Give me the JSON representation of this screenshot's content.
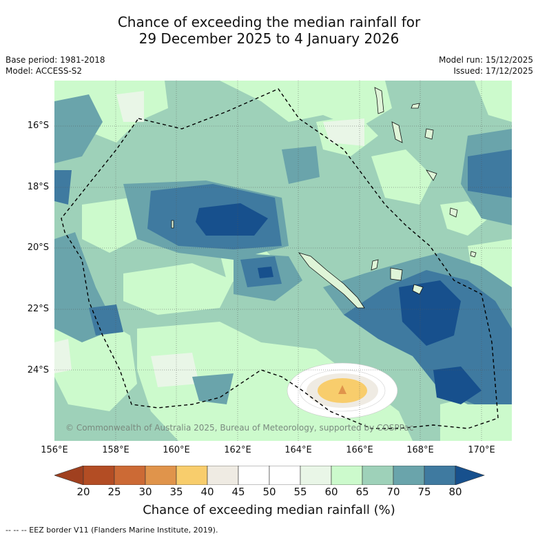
{
  "title": {
    "line1": "Chance of exceeding the median rainfall for",
    "line2": "29 December 2025 to 4 January 2026"
  },
  "meta": {
    "base_period": "Base period: 1981-2018",
    "model": "Model: ACCESS-S2",
    "model_run": "Model run: 15/12/2025",
    "issued": "Issued: 17/12/2025"
  },
  "axes": {
    "lat_labels": [
      "16°S",
      "18°S",
      "20°S",
      "22°S",
      "24°S"
    ],
    "lon_labels": [
      "156°E",
      "158°E",
      "160°E",
      "162°E",
      "164°E",
      "166°E",
      "168°E",
      "170°E"
    ]
  },
  "copyright": "© Commonwealth of Australia 2025, Bureau of Meteorology, supported by COSPPac",
  "colorbar": {
    "title": "Chance of exceeding median rainfall (%)",
    "ticks": [
      "20",
      "25",
      "30",
      "35",
      "40",
      "45",
      "50",
      "55",
      "60",
      "65",
      "70",
      "75",
      "80"
    ],
    "colors": [
      "#a0401f",
      "#b34d24",
      "#cc6a35",
      "#e0944b",
      "#f8cd6c",
      "#efebe3",
      "#ffffff",
      "#ffffff",
      "#e9f6e7",
      "#ccfacc",
      "#9ed1b9",
      "#6aa4ab",
      "#3f7aa0",
      "#17508d"
    ]
  },
  "legend_note": "--  --  -- EEZ border V11 (Flanders Marine Institute, 2019)."
}
